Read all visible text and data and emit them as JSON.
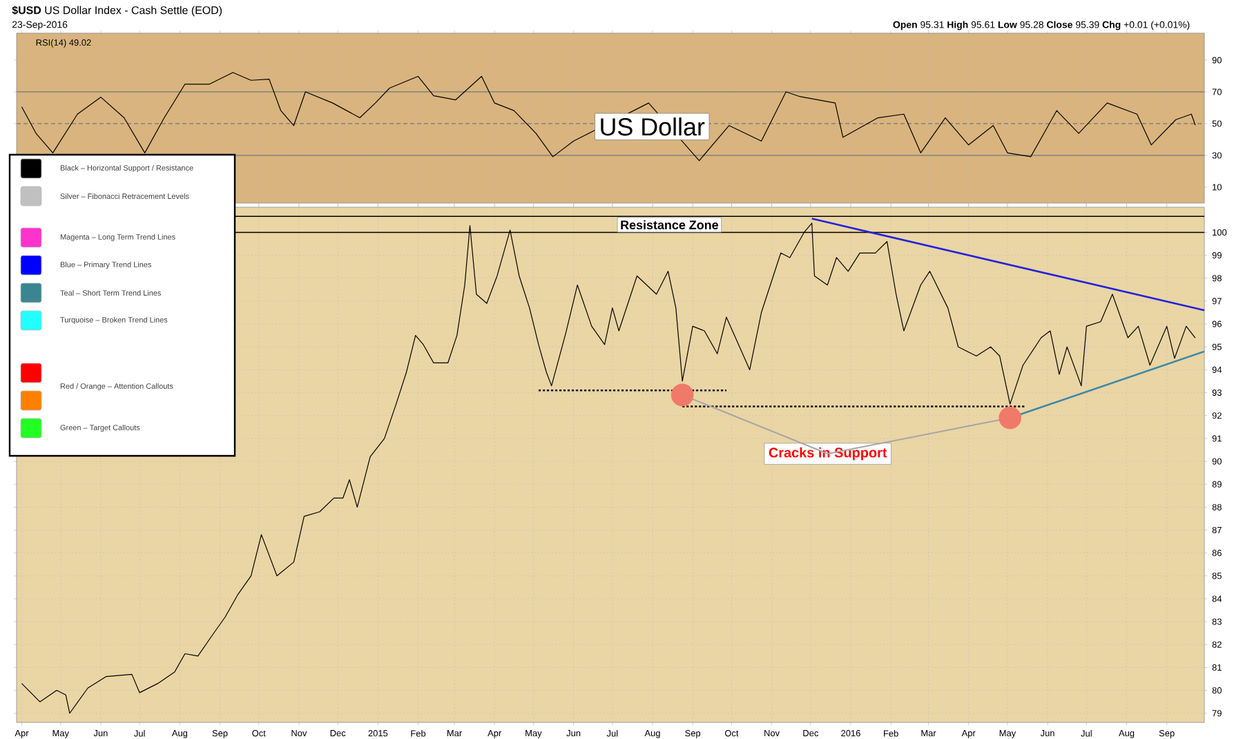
{
  "chart_data": [
    {
      "type": "line",
      "annotations": [
        {
          "text": "Cracks in Support",
          "x": "2016-05-03",
          "y": 91.9
        }
      ],
      "xlim": [
        "2014-03-28",
        "2016-09-30"
      ],
      "xticks": [
        {
          "value": "2014-04-01",
          "label": "Apr"
        },
        {
          "value": "2014-05-01",
          "label": "May"
        },
        {
          "value": "2014-06-01",
          "label": "Jun"
        },
        {
          "value": "2014-07-01",
          "label": "Jul"
        },
        {
          "value": "2014-08-01",
          "label": "Aug"
        },
        {
          "value": "2014-09-01",
          "label": "Sep"
        },
        {
          "value": "2014-10-01",
          "label": "Oct"
        },
        {
          "value": "2014-11-01",
          "label": "Nov"
        },
        {
          "value": "2014-12-01",
          "label": "Dec"
        },
        {
          "value": "2015-01-01",
          "label": "2015"
        },
        {
          "value": "2015-02-01",
          "label": "Feb"
        },
        {
          "value": "2015-03-01",
          "label": "Mar"
        },
        {
          "value": "2015-04-01",
          "label": "Apr"
        },
        {
          "value": "2015-05-01",
          "label": "May"
        },
        {
          "value": "2015-06-01",
          "label": "Jun"
        },
        {
          "value": "2015-07-01",
          "label": "Jul"
        },
        {
          "value": "2015-08-01",
          "label": "Aug"
        },
        {
          "value": "2015-09-01",
          "label": "Sep"
        },
        {
          "value": "2015-10-01",
          "label": "Oct"
        },
        {
          "value": "2015-11-01",
          "label": "Nov"
        },
        {
          "value": "2015-12-01",
          "label": "Dec"
        },
        {
          "value": "2016-01-01",
          "label": "2016"
        },
        {
          "value": "2016-02-01",
          "label": "Feb"
        },
        {
          "value": "2016-03-01",
          "label": "Mar"
        },
        {
          "value": "2016-04-01",
          "label": "Apr"
        },
        {
          "value": "2016-05-01",
          "label": "May"
        },
        {
          "value": "2016-06-01",
          "label": "Jun"
        },
        {
          "value": "2016-07-01",
          "label": "Jul"
        },
        {
          "value": "2016-08-01",
          "label": "Aug"
        },
        {
          "value": "2016-09-01",
          "label": "Sep"
        }
      ],
      "ylim": [
        78.6,
        101.1
      ],
      "yticks": [
        79,
        80,
        81,
        82,
        83,
        84,
        85,
        86,
        87,
        88,
        89,
        90,
        91,
        92,
        93,
        94,
        95,
        96,
        97,
        98,
        99,
        100
      ],
      "grid": true,
      "ref_lines": [
        {
          "axis": "y",
          "value": 100.7,
          "color": "#000000",
          "line_style": "solid"
        },
        {
          "axis": "y",
          "value": 100,
          "color": "#000000",
          "line_style": "solid",
          "label": "Resistance Zone"
        }
      ],
      "series": [
        {
          "type": "line",
          "color": "#000000",
          "x": [
            "2014-04-01",
            "2014-04-15",
            "2014-04-28",
            "2014-05-05",
            "2014-05-08",
            "2014-05-22",
            "2014-06-05",
            "2014-06-25",
            "2014-07-01",
            "2014-07-15",
            "2014-07-28",
            "2014-08-05",
            "2014-08-15",
            "2014-08-26",
            "2014-09-05",
            "2014-09-15",
            "2014-09-25",
            "2014-10-03",
            "2014-10-15",
            "2014-10-28",
            "2014-11-05",
            "2014-11-17",
            "2014-11-28",
            "2014-12-05",
            "2014-12-10",
            "2014-12-16",
            "2014-12-26",
            "2015-01-06",
            "2015-01-15",
            "2015-01-23",
            "2015-01-30",
            "2015-02-05",
            "2015-02-13",
            "2015-02-24",
            "2015-03-03",
            "2015-03-09",
            "2015-03-13",
            "2015-03-18",
            "2015-03-26",
            "2015-04-03",
            "2015-04-13",
            "2015-04-20",
            "2015-04-28",
            "2015-05-05",
            "2015-05-11",
            "2015-05-15",
            "2015-05-26",
            "2015-06-04",
            "2015-06-15",
            "2015-06-25",
            "2015-07-01",
            "2015-07-06",
            "2015-07-20",
            "2015-08-04",
            "2015-08-13",
            "2015-08-19",
            "2015-08-24",
            "2015-09-01",
            "2015-09-10",
            "2015-09-20",
            "2015-09-27",
            "2015-10-15",
            "2015-10-24",
            "2015-11-08",
            "2015-11-15",
            "2015-11-26",
            "2015-12-02",
            "2015-12-04",
            "2015-12-14",
            "2015-12-21",
            "2015-12-30",
            "2016-01-08",
            "2016-01-20",
            "2016-01-29",
            "2016-02-05",
            "2016-02-11",
            "2016-02-24",
            "2016-03-02",
            "2016-03-16",
            "2016-03-24",
            "2016-04-07",
            "2016-04-18",
            "2016-04-25",
            "2016-05-03",
            "2016-05-13",
            "2016-05-27",
            "2016-06-03",
            "2016-06-10",
            "2016-06-16",
            "2016-06-27",
            "2016-07-01",
            "2016-07-12",
            "2016-07-21",
            "2016-08-02",
            "2016-08-10",
            "2016-08-19",
            "2016-09-01",
            "2016-09-07",
            "2016-09-16",
            "2016-09-23"
          ],
          "values": [
            80.3,
            79.5,
            80.0,
            79.8,
            79.0,
            80.1,
            80.6,
            80.7,
            79.9,
            80.3,
            80.8,
            81.6,
            81.5,
            82.4,
            83.2,
            84.2,
            85.0,
            86.8,
            85.0,
            85.6,
            87.6,
            87.8,
            88.4,
            88.4,
            89.2,
            88.0,
            90.2,
            91.0,
            92.5,
            93.9,
            95.5,
            95.1,
            94.3,
            94.3,
            95.5,
            97.7,
            100.3,
            97.3,
            96.9,
            98.1,
            100.1,
            98.1,
            96.7,
            95.1,
            93.9,
            93.3,
            95.6,
            97.7,
            95.9,
            95.1,
            96.7,
            95.7,
            98.1,
            97.3,
            98.3,
            96.7,
            93.5,
            95.9,
            95.7,
            94.7,
            96.3,
            94.0,
            96.5,
            99.1,
            98.9,
            100.0,
            100.4,
            98.1,
            97.7,
            98.9,
            98.3,
            99.1,
            99.1,
            99.6,
            97.3,
            95.7,
            97.7,
            98.3,
            96.7,
            95.0,
            94.6,
            95.0,
            94.6,
            92.5,
            94.2,
            95.4,
            95.7,
            93.8,
            95.0,
            93.3,
            95.9,
            96.1,
            97.3,
            95.4,
            95.9,
            94.2,
            95.9,
            94.5,
            95.9,
            95.39
          ]
        },
        {
          "type": "line",
          "color": "#2222dd",
          "x": [
            "2015-12-02",
            "2016-09-30"
          ],
          "values": [
            100.6,
            96.6
          ]
        },
        {
          "type": "line",
          "color": "#3a8aa8",
          "x": [
            "2016-05-03",
            "2016-09-30"
          ],
          "values": [
            91.9,
            94.8
          ]
        },
        {
          "type": "line",
          "color": "#000000",
          "line_style": "dotted",
          "x": [
            "2015-05-05",
            "2015-09-27"
          ],
          "values": [
            93.1,
            93.1
          ]
        },
        {
          "type": "line",
          "color": "#000000",
          "line_style": "dotted",
          "x": [
            "2015-08-24",
            "2016-05-14"
          ],
          "values": [
            92.4,
            92.4
          ]
        },
        {
          "type": "scatter",
          "color": "#f07a6a",
          "marker": "circle",
          "x": [
            "2015-08-24",
            "2016-05-03"
          ],
          "values": [
            92.9,
            91.9
          ]
        }
      ]
    },
    {
      "type": "line",
      "title": "**$USD** US Dollar Index - Cash Settle (EOD)",
      "subtitle": "23-Sep-2016",
      "ylabel": "RSI(14) 49.02",
      "annotations": [
        "US Dollar",
        "**Open** 95.31 **High** 95.61 **Low** 95.28 **Close** 95.39 **Chg** +0.01 (+0.01%)"
      ],
      "xlim": [
        "2014-03-28",
        "2016-09-30"
      ],
      "xticks": [
        {
          "value": "2014-04-01",
          "label": null
        },
        {
          "value": "2014-05-01",
          "label": null
        },
        {
          "value": "2014-06-01",
          "label": null
        },
        {
          "value": "2014-07-01",
          "label": null
        },
        {
          "value": "2014-08-01",
          "label": null
        },
        {
          "value": "2014-09-01",
          "label": null
        },
        {
          "value": "2014-10-01",
          "label": null
        },
        {
          "value": "2014-11-01",
          "label": null
        },
        {
          "value": "2014-12-01",
          "label": null
        },
        {
          "value": "2015-01-01",
          "label": null
        },
        {
          "value": "2015-02-01",
          "label": null
        },
        {
          "value": "2015-03-01",
          "label": null
        },
        {
          "value": "2015-04-01",
          "label": null
        },
        {
          "value": "2015-05-01",
          "label": null
        },
        {
          "value": "2015-06-01",
          "label": null
        },
        {
          "value": "2015-07-01",
          "label": null
        },
        {
          "value": "2015-08-01",
          "label": null
        },
        {
          "value": "2015-09-01",
          "label": null
        },
        {
          "value": "2015-10-01",
          "label": null
        },
        {
          "value": "2015-11-01",
          "label": null
        },
        {
          "value": "2015-12-01",
          "label": null
        },
        {
          "value": "2016-01-01",
          "label": null
        },
        {
          "value": "2016-02-01",
          "label": null
        },
        {
          "value": "2016-03-01",
          "label": null
        },
        {
          "value": "2016-04-01",
          "label": null
        },
        {
          "value": "2016-05-01",
          "label": null
        },
        {
          "value": "2016-06-01",
          "label": null
        },
        {
          "value": "2016-07-01",
          "label": null
        },
        {
          "value": "2016-08-01",
          "label": null
        },
        {
          "value": "2016-09-01",
          "label": null
        }
      ],
      "ylim": [
        0,
        107
      ],
      "yticks": [
        10,
        30,
        50,
        70,
        90
      ],
      "tick_labels": "y",
      "grid": "x",
      "ref_lines": [
        {
          "axis": "y",
          "value": 70,
          "color": "#808080",
          "line_style": "solid"
        },
        {
          "axis": "y",
          "value": 50,
          "color": "#808080",
          "line_style": "dashed"
        },
        {
          "axis": "y",
          "value": 30,
          "color": "#808080",
          "line_style": "solid"
        }
      ],
      "series": [
        {
          "color": "#000000",
          "x": [
            "2014-04-01",
            "2014-04-12",
            "2014-04-25",
            "2014-05-14",
            "2014-06-01",
            "2014-06-19",
            "2014-07-05",
            "2014-07-20",
            "2014-08-05",
            "2014-08-24",
            "2014-09-11",
            "2014-09-25",
            "2014-10-09",
            "2014-10-18",
            "2014-10-28",
            "2014-11-06",
            "2014-11-27",
            "2014-12-18",
            "2014-12-30",
            "2015-01-10",
            "2015-02-01",
            "2015-02-13",
            "2015-03-02",
            "2015-03-22",
            "2015-04-01",
            "2015-04-16",
            "2015-05-03",
            "2015-05-16",
            "2015-06-01",
            "2015-07-29",
            "2015-09-06",
            "2015-09-29",
            "2015-10-24",
            "2015-11-12",
            "2015-11-23",
            "2015-12-20",
            "2015-12-26",
            "2016-01-22",
            "2016-02-11",
            "2016-02-24",
            "2016-03-14",
            "2016-04-01",
            "2016-04-20",
            "2016-05-01",
            "2016-05-19",
            "2016-06-08",
            "2016-06-25",
            "2016-07-17",
            "2016-08-09",
            "2016-08-20",
            "2016-09-08",
            "2016-09-20",
            "2016-09-23"
          ],
          "values": [
            60.6,
            43.9,
            31.6,
            56,
            66.7,
            53.7,
            31.6,
            53.7,
            74.9,
            74.9,
            82.2,
            77.3,
            78,
            58.2,
            48.8,
            70,
            63,
            53.7,
            63,
            72.4,
            79.8,
            67.6,
            65,
            79.8,
            63,
            58.2,
            43.9,
            29.2,
            39,
            63,
            26.7,
            48.8,
            39,
            70,
            67,
            63,
            41.4,
            53.7,
            56,
            31.6,
            53.7,
            36.6,
            48.8,
            31.6,
            29.2,
            58.2,
            43.9,
            63,
            56,
            36.6,
            52.5,
            56,
            49.02
          ]
        }
      ]
    },
    {
      "type": "other",
      "categories": [
        "Black – Horizontal Support / Resistance",
        "Silver – Fibonacci Retracement Levels",
        "Magenta – Long Term Trend Lines",
        "Blue – Primary Trend Lines",
        "Teal – Short Term Trend Lines",
        "Turquoise – Broken Trend Lines",
        null,
        "Red / Orange – Attention Callouts",
        "Green – Target Callouts"
      ],
      "colors": [
        "#000000",
        "#c0c0c0",
        "#ff33cc",
        "#0000ff",
        "#3a8591",
        "#22ffff",
        "#ff0000",
        "#ff8000",
        "#22ff22"
      ]
    }
  ]
}
